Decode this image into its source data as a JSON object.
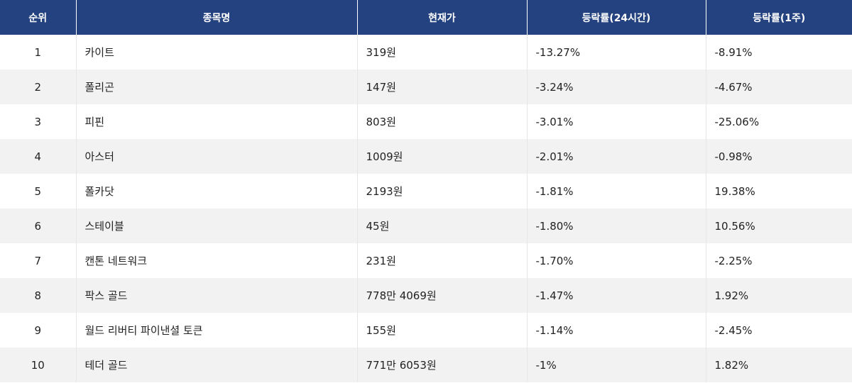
{
  "table": {
    "headers": [
      "순위",
      "종목명",
      "현재가",
      "등락률(24시간)",
      "등락률(1주)"
    ],
    "rows": [
      {
        "rank": "1",
        "name": "카이트",
        "price": "319원",
        "change_24h": "-13.27%",
        "change_1w": "-8.91%"
      },
      {
        "rank": "2",
        "name": "폴리곤",
        "price": "147원",
        "change_24h": "-3.24%",
        "change_1w": "-4.67%"
      },
      {
        "rank": "3",
        "name": "피핀",
        "price": "803원",
        "change_24h": "-3.01%",
        "change_1w": "-25.06%"
      },
      {
        "rank": "4",
        "name": "아스터",
        "price": "1009원",
        "change_24h": "-2.01%",
        "change_1w": "-0.98%"
      },
      {
        "rank": "5",
        "name": "폴카닷",
        "price": "2193원",
        "change_24h": "-1.81%",
        "change_1w": "19.38%"
      },
      {
        "rank": "6",
        "name": "스테이블",
        "price": "45원",
        "change_24h": "-1.80%",
        "change_1w": "10.56%"
      },
      {
        "rank": "7",
        "name": "캔톤 네트워크",
        "price": "231원",
        "change_24h": "-1.70%",
        "change_1w": "-2.25%"
      },
      {
        "rank": "8",
        "name": "팍스 골드",
        "price": "778만 4069원",
        "change_24h": "-1.47%",
        "change_1w": "1.92%"
      },
      {
        "rank": "9",
        "name": "월드 리버티 파이낸셜 토큰",
        "price": "155원",
        "change_24h": "-1.14%",
        "change_1w": "-2.45%"
      },
      {
        "rank": "10",
        "name": "테더 골드",
        "price": "771만 6053원",
        "change_24h": "-1%",
        "change_1w": "1.82%"
      }
    ]
  }
}
